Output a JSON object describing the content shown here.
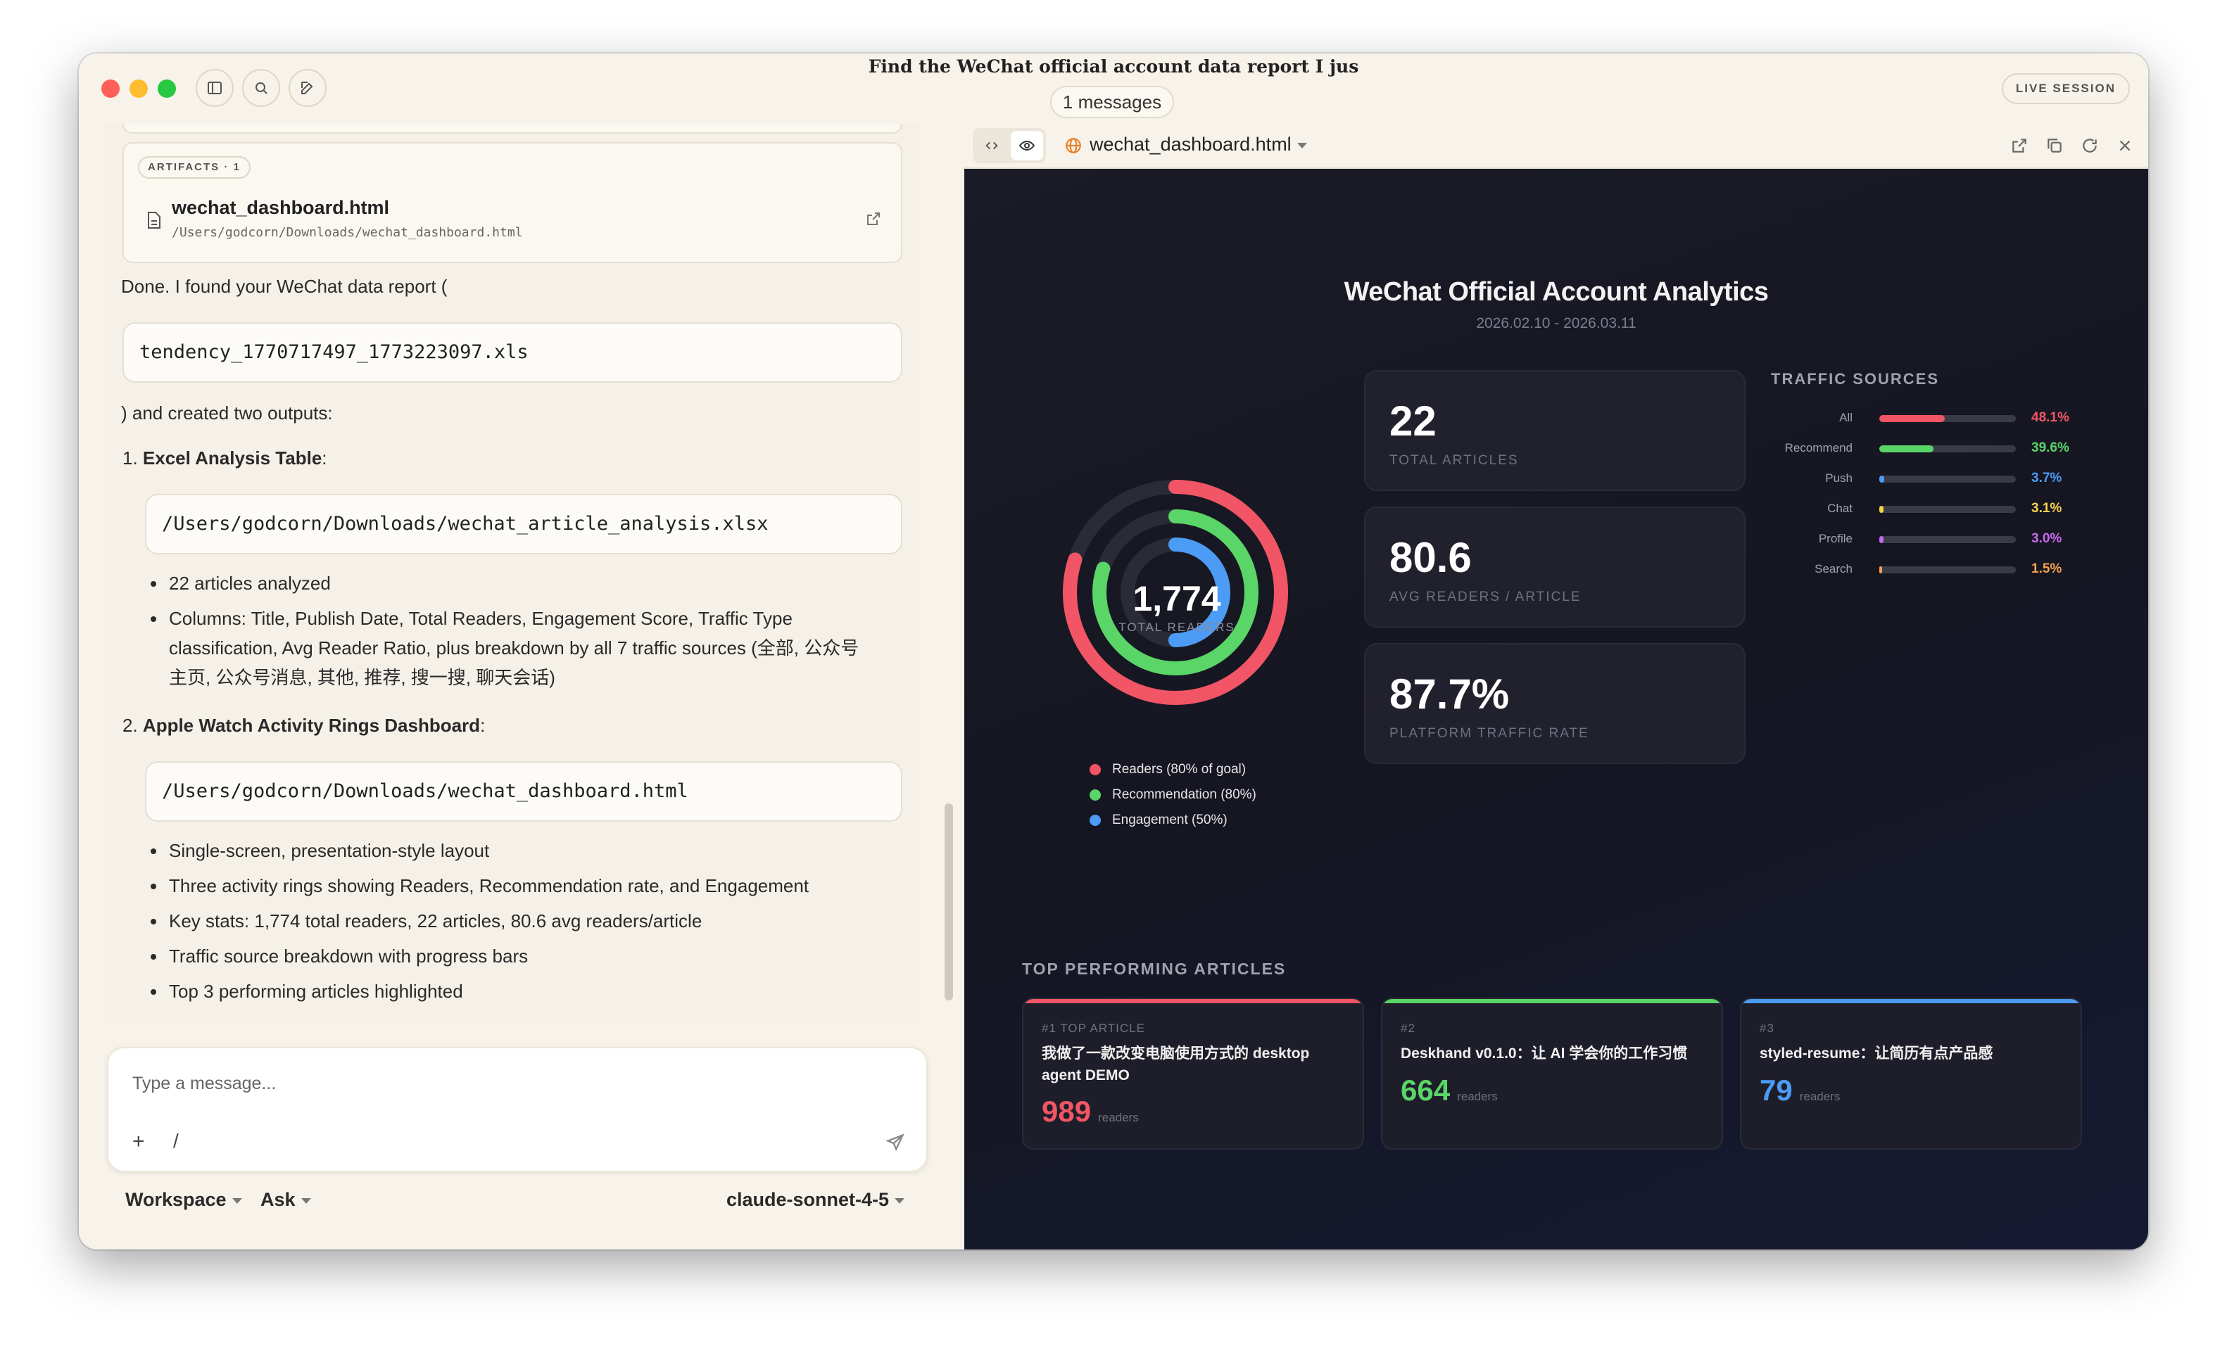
{
  "window": {
    "title": "Find the WeChat official account data report I jus",
    "messages_count": "1 messages",
    "live_badge": "LIVE SESSION"
  },
  "artifacts": {
    "tag": "ARTIFACTS · 1",
    "file_name": "wechat_dashboard.html",
    "file_path": "/Users/godcorn/Downloads/wechat_dashboard.html"
  },
  "chat": {
    "intro": "Done. I found your WeChat data report (",
    "report_file": "tendency_1770717497_1773223097.xls",
    "outro": ") and created two outputs:",
    "item1_num": "1.",
    "item1_title": "Excel Analysis Table",
    "item1_colon": ":",
    "item1_path": "/Users/godcorn/Downloads/wechat_article_analysis.xlsx",
    "item1_bullets": [
      "22 articles analyzed",
      "Columns: Title, Publish Date, Total Readers, Engagement Score, Traffic Type",
      "classification, Avg Reader Ratio, plus breakdown by all 7 traffic sources (全部, 公众号",
      "主页, 公众号消息, 其他, 推荐, 搜一搜, 聊天会话)"
    ],
    "item2_num": "2.",
    "item2_title": "Apple Watch Activity Rings Dashboard",
    "item2_colon": ":",
    "item2_path": "/Users/godcorn/Downloads/wechat_dashboard.html",
    "item2_bullets": [
      "Single-screen, presentation-style layout",
      "Three activity rings showing Readers, Recommendation rate, and Engagement",
      "Key stats: 1,774 total readers, 22 articles, 80.6 avg readers/article",
      "Traffic source breakdown with progress bars",
      "Top 3 performing articles highlighted"
    ]
  },
  "composer": {
    "placeholder": "Type a message...",
    "plus": "+",
    "slash": "/",
    "workspace": "Workspace",
    "mode": "Ask",
    "model": "claude-sonnet-4-5"
  },
  "preview": {
    "file_name": "wechat_dashboard.html"
  },
  "dashboard": {
    "title": "WeChat Official Account Analytics",
    "date_range": "2026.02.10 - 2026.03.11",
    "total_readers": "1,774",
    "total_readers_label": "TOTAL READERS",
    "rings": [
      {
        "label": "Readers (80% of goal)",
        "fraction": 0.8,
        "color": "#f25565"
      },
      {
        "label": "Recommendation (80%)",
        "fraction": 0.8,
        "color": "#5ad567"
      },
      {
        "label": "Engagement (50%)",
        "fraction": 0.5,
        "color": "#4c9bf5"
      }
    ],
    "stats": [
      {
        "value": "22",
        "label": "TOTAL ARTICLES"
      },
      {
        "value": "80.6",
        "label": "AVG READERS / ARTICLE"
      },
      {
        "value": "87.7%",
        "label": "PLATFORM TRAFFIC RATE"
      }
    ],
    "traffic_title": "TRAFFIC SOURCES",
    "traffic": [
      {
        "name": "All",
        "pct": "48.1%",
        "fraction": 0.481,
        "color": "#f25565"
      },
      {
        "name": "Recommend",
        "pct": "39.6%",
        "fraction": 0.396,
        "color": "#5ad567"
      },
      {
        "name": "Push",
        "pct": "3.7%",
        "fraction": 0.037,
        "color": "#4c9bf5"
      },
      {
        "name": "Chat",
        "pct": "3.1%",
        "fraction": 0.031,
        "color": "#f5d34c"
      },
      {
        "name": "Profile",
        "pct": "3.0%",
        "fraction": 0.03,
        "color": "#c86af0"
      },
      {
        "name": "Search",
        "pct": "1.5%",
        "fraction": 0.015,
        "color": "#f5a04c"
      }
    ],
    "top_title": "TOP PERFORMING ARTICLES",
    "articles": [
      {
        "rank": "#1 TOP ARTICLE",
        "title": "我做了一款改变电脑使用方式的 desktop agent DEMO",
        "readers": "989",
        "unit": "readers",
        "color": "#f25565"
      },
      {
        "rank": "#2",
        "title": "Deskhand v0.1.0：让 AI 学会你的工作习惯",
        "readers": "664",
        "unit": "readers",
        "color": "#5ad567"
      },
      {
        "rank": "#3",
        "title": "styled-resume：让简历有点产品感",
        "readers": "79",
        "unit": "readers",
        "color": "#4c9bf5"
      }
    ]
  }
}
